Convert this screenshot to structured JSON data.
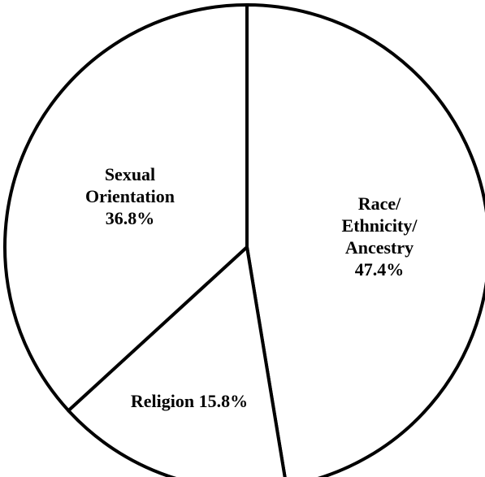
{
  "chart_data": {
    "type": "pie",
    "slices": [
      {
        "label": "Race/\nEthnicity/\nAncestry",
        "value": 47.4,
        "value_label": "47.4%",
        "color": "#ffffff"
      },
      {
        "label": "Religion",
        "value": 15.8,
        "value_label": "15.8%",
        "color": "#ffffff"
      },
      {
        "label": "Sexual\nOrientation",
        "value": 36.8,
        "value_label": "36.8%",
        "color": "#ffffff"
      }
    ],
    "stroke_color": "#000000",
    "start_angle": "12 o'clock",
    "direction": "clockwise"
  }
}
